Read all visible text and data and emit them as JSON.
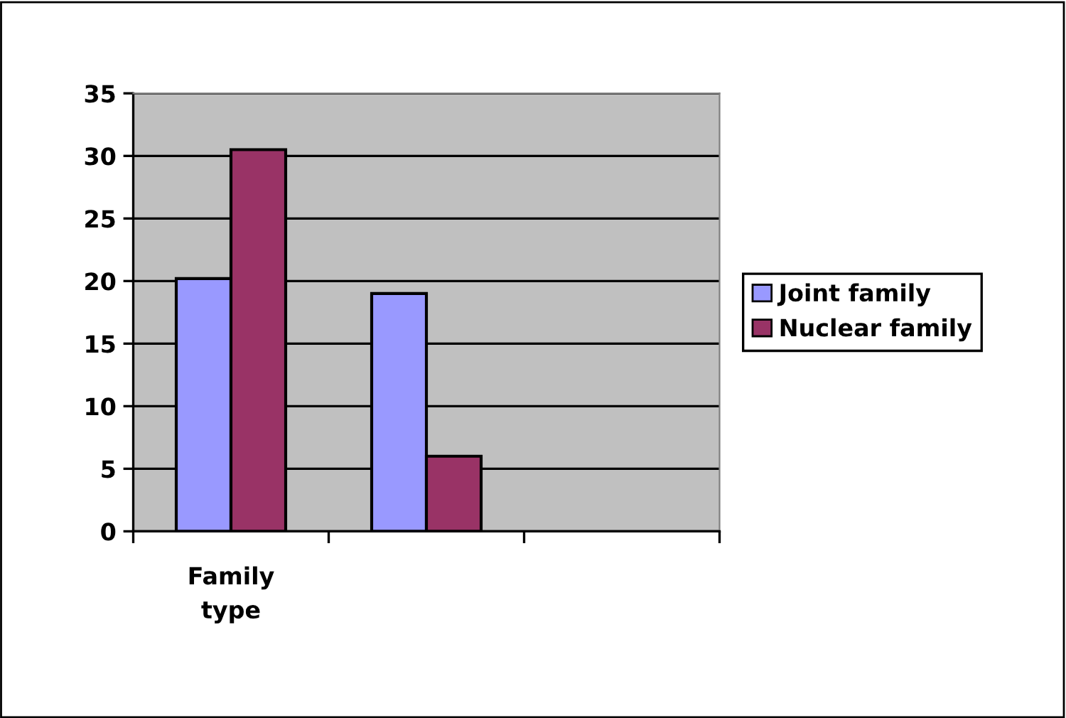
{
  "chart_data": {
    "type": "bar",
    "categories": [
      "Family\ntype",
      null,
      null
    ],
    "series": [
      {
        "name": "Joint family",
        "color": "#9999ff",
        "values": [
          20.2,
          19,
          null
        ]
      },
      {
        "name": "Nuclear family",
        "color": "#993366",
        "values": [
          30.5,
          6,
          null
        ]
      }
    ],
    "ylim": [
      0,
      35
    ],
    "yticks": [
      0,
      5,
      10,
      15,
      20,
      25,
      30,
      35
    ],
    "grid": "y",
    "legend": "right"
  }
}
